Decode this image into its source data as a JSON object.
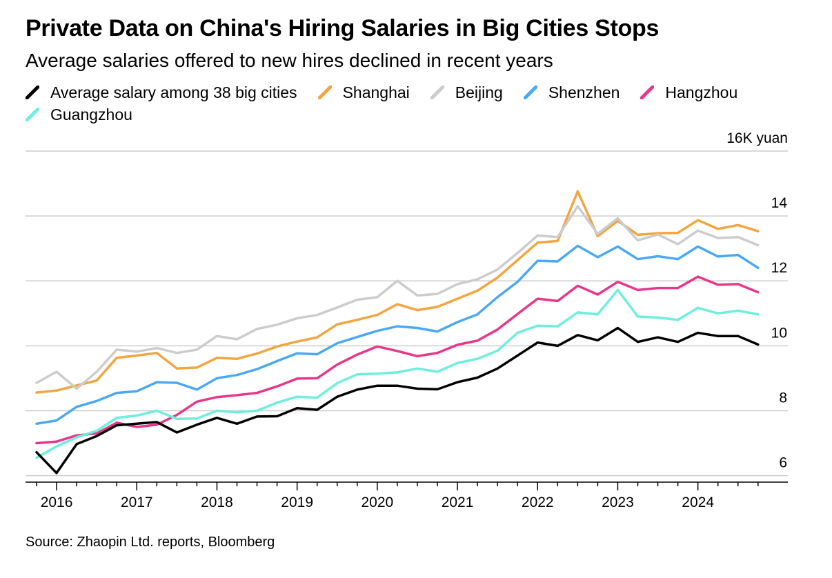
{
  "chart_data": {
    "type": "line",
    "title": "Private Data on China's Hiring Salaries in Big Cities Stops",
    "subtitle": "Average salaries offered to new hires declined in recent years",
    "source": "Source: Zhaopin Ltd. reports, Bloomberg",
    "unit_label": "16K yuan",
    "ylim": [
      5.8,
      16
    ],
    "y_ticks": [
      6,
      8,
      10,
      12,
      14
    ],
    "y_tick_labels": [
      "6",
      "8",
      "10",
      "12",
      "14"
    ],
    "x_tick_labels": [
      "2016",
      "2017",
      "2018",
      "2019",
      "2020",
      "2021",
      "2022",
      "2023",
      "2024"
    ],
    "x": [
      "2015Q4",
      "2016Q1",
      "2016Q2",
      "2016Q3",
      "2016Q4",
      "2017Q1",
      "2017Q2",
      "2017Q3",
      "2017Q4",
      "2018Q1",
      "2018Q2",
      "2018Q3",
      "2018Q4",
      "2019Q1",
      "2019Q2",
      "2019Q3",
      "2019Q4",
      "2020Q1",
      "2020Q2",
      "2020Q3",
      "2020Q4",
      "2021Q1",
      "2021Q2",
      "2021Q3",
      "2021Q4",
      "2022Q1",
      "2022Q2",
      "2022Q3",
      "2022Q4",
      "2023Q1",
      "2023Q2",
      "2023Q3",
      "2023Q4",
      "2024Q1",
      "2024Q2",
      "2024Q3",
      "2024Q4"
    ],
    "grid": true,
    "legend": "top",
    "series": [
      {
        "name": "Shanghai",
        "color": "#f2a541",
        "values": [
          8.56,
          8.62,
          8.78,
          8.93,
          9.63,
          9.7,
          9.78,
          9.3,
          9.33,
          9.63,
          9.6,
          9.76,
          9.98,
          10.13,
          10.26,
          10.66,
          10.8,
          10.95,
          11.28,
          11.1,
          11.2,
          11.45,
          11.7,
          12.1,
          12.64,
          13.18,
          13.23,
          14.76,
          13.38,
          13.85,
          13.42,
          13.47,
          13.48,
          13.87,
          13.6,
          13.72,
          13.53
        ]
      },
      {
        "name": "Beijing",
        "color": "#cccccc",
        "values": [
          8.86,
          9.2,
          8.68,
          9.2,
          9.88,
          9.82,
          9.93,
          9.78,
          9.88,
          10.3,
          10.2,
          10.52,
          10.65,
          10.85,
          10.95,
          11.18,
          11.42,
          11.5,
          12.0,
          11.55,
          11.6,
          11.9,
          12.05,
          12.35,
          12.86,
          13.4,
          13.35,
          14.3,
          13.45,
          13.93,
          13.25,
          13.43,
          13.13,
          13.55,
          13.32,
          13.35,
          13.1
        ]
      },
      {
        "name": "Shenzhen",
        "color": "#4aa8f5",
        "values": [
          7.6,
          7.7,
          8.12,
          8.3,
          8.55,
          8.6,
          8.88,
          8.86,
          8.65,
          9.0,
          9.1,
          9.28,
          9.53,
          9.77,
          9.74,
          10.08,
          10.27,
          10.46,
          10.6,
          10.55,
          10.44,
          10.73,
          10.97,
          11.5,
          11.97,
          12.62,
          12.6,
          13.08,
          12.73,
          13.06,
          12.67,
          12.76,
          12.67,
          13.06,
          12.75,
          12.8,
          12.4
        ]
      },
      {
        "name": "Hangzhou",
        "color": "#e8368a",
        "values": [
          7.0,
          7.05,
          7.24,
          7.3,
          7.63,
          7.5,
          7.57,
          7.87,
          8.28,
          8.42,
          8.48,
          8.55,
          8.75,
          8.99,
          9.0,
          9.42,
          9.73,
          9.98,
          9.84,
          9.68,
          9.78,
          10.03,
          10.16,
          10.5,
          10.98,
          11.45,
          11.38,
          11.85,
          11.58,
          11.97,
          11.72,
          11.78,
          11.78,
          12.13,
          11.88,
          11.9,
          11.65
        ]
      },
      {
        "name": "Guangzhou",
        "color": "#6eeedd",
        "values": [
          6.55,
          6.9,
          7.18,
          7.38,
          7.78,
          7.85,
          8.0,
          7.75,
          7.76,
          8.0,
          7.95,
          8.0,
          8.25,
          8.43,
          8.4,
          8.85,
          9.12,
          9.14,
          9.18,
          9.3,
          9.2,
          9.47,
          9.6,
          9.85,
          10.4,
          10.62,
          10.6,
          11.03,
          10.97,
          11.72,
          10.9,
          10.87,
          10.8,
          11.17,
          11.0,
          11.08,
          10.97
        ]
      },
      {
        "name": "Average salary among 38 big cities",
        "color": "#000000",
        "values": [
          6.72,
          6.08,
          6.97,
          7.22,
          7.55,
          7.6,
          7.65,
          7.33,
          7.57,
          7.78,
          7.6,
          7.82,
          7.83,
          8.08,
          8.03,
          8.43,
          8.65,
          8.77,
          8.77,
          8.68,
          8.66,
          8.88,
          9.02,
          9.3,
          9.7,
          10.1,
          10.0,
          10.33,
          10.17,
          10.55,
          10.12,
          10.26,
          10.12,
          10.4,
          10.3,
          10.3,
          10.04
        ]
      }
    ]
  },
  "legend_items": [
    {
      "label": "Average salary among 38 big cities",
      "color": "#000000"
    },
    {
      "label": "Shanghai",
      "color": "#f2a541"
    },
    {
      "label": "Beijing",
      "color": "#cccccc"
    },
    {
      "label": "Shenzhen",
      "color": "#4aa8f5"
    },
    {
      "label": "Hangzhou",
      "color": "#e8368a"
    },
    {
      "label": "Guangzhou",
      "color": "#6eeedd"
    }
  ]
}
